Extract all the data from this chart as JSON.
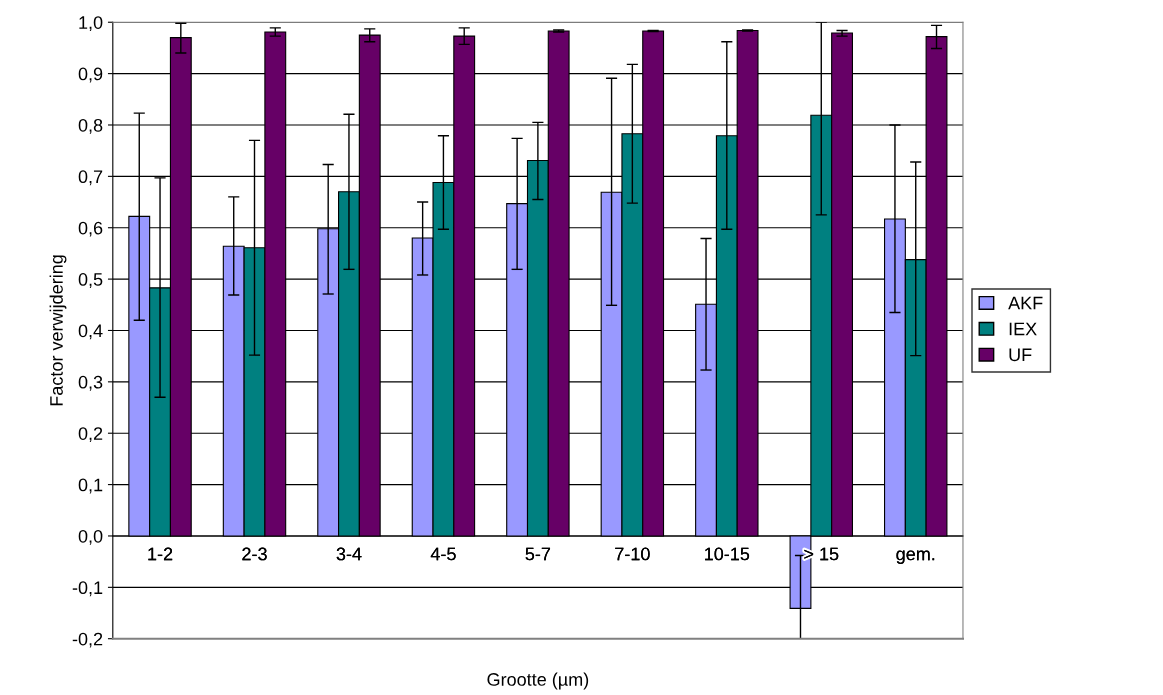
{
  "chart_data": {
    "type": "bar",
    "xlabel": "Grootte (µm)",
    "ylabel": "Factor verwijdering",
    "categories": [
      "1-2",
      "2-3",
      "3-4",
      "4-5",
      "5-7",
      "7-10",
      "10-15",
      "> 15",
      "gem."
    ],
    "series": [
      {
        "name": "AKF",
        "color": "#9999ff",
        "values": [
          0.622,
          0.564,
          0.598,
          0.58,
          0.647,
          0.669,
          0.451,
          -0.141,
          0.617
        ],
        "errors": [
          [
            0.42,
            0.823
          ],
          [
            0.469,
            0.66
          ],
          [
            0.471,
            0.723
          ],
          [
            0.508,
            0.65
          ],
          [
            0.519,
            0.774
          ],
          [
            0.449,
            0.891
          ],
          [
            0.323,
            0.579
          ],
          [
            -0.2,
            -0.038
          ],
          [
            0.435,
            0.8
          ]
        ]
      },
      {
        "name": "IEX",
        "color": "#008080",
        "values": [
          0.483,
          0.561,
          0.67,
          0.688,
          0.731,
          0.783,
          0.779,
          0.819,
          0.538
        ],
        "errors": [
          [
            0.27,
            0.697
          ],
          [
            0.352,
            0.77
          ],
          [
            0.519,
            0.821
          ],
          [
            0.597,
            0.779
          ],
          [
            0.655,
            0.805
          ],
          [
            0.648,
            0.918
          ],
          [
            0.597,
            0.962
          ],
          [
            0.625,
            1.0
          ],
          [
            0.351,
            0.728
          ]
        ]
      },
      {
        "name": "UF",
        "color": "#660066",
        "values": [
          0.97,
          0.981,
          0.975,
          0.973,
          0.983,
          0.983,
          0.984,
          0.979,
          0.972
        ],
        "errors": [
          [
            0.94,
            0.998
          ],
          [
            0.973,
            0.989
          ],
          [
            0.962,
            0.987
          ],
          [
            0.957,
            0.989
          ],
          [
            0.981,
            0.985
          ],
          [
            0.982,
            0.984
          ],
          [
            0.983,
            0.985
          ],
          [
            0.973,
            0.984
          ],
          [
            0.949,
            0.994
          ]
        ]
      }
    ],
    "ylim": [
      -0.2,
      1.0
    ],
    "yticks": [
      {
        "value": -0.2,
        "label": "-0,2"
      },
      {
        "value": -0.1,
        "label": "-0,1"
      },
      {
        "value": 0,
        "label": "0,0"
      },
      {
        "value": 0.1,
        "label": "0,1"
      },
      {
        "value": 0.2,
        "label": "0,2"
      },
      {
        "value": 0.3,
        "label": "0,3"
      },
      {
        "value": 0.4,
        "label": "0,4"
      },
      {
        "value": 0.5,
        "label": "0,5"
      },
      {
        "value": 0.6,
        "label": "0,6"
      },
      {
        "value": 0.7,
        "label": "0,7"
      },
      {
        "value": 0.8,
        "label": "0,8"
      },
      {
        "value": 0.9,
        "label": "0,9"
      },
      {
        "value": 1.0,
        "label": "1,0"
      }
    ],
    "grid": "y",
    "legend": "right"
  }
}
